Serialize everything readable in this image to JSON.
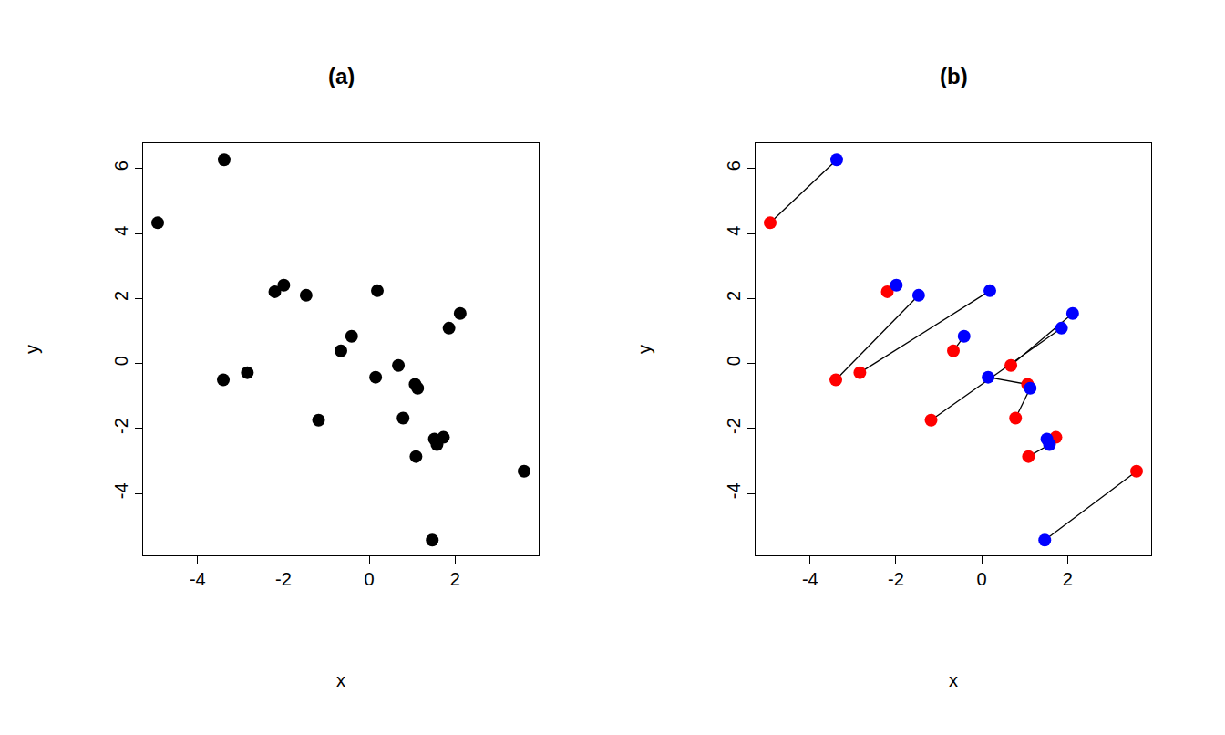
{
  "chart_data": [
    {
      "type": "scatter",
      "title": "(a)",
      "x_label": "x",
      "y_label": "y",
      "color": "black",
      "marker": "circle",
      "x": [
        -4.93,
        -3.38,
        -2.2,
        -1.99,
        -1.47,
        0.19,
        2.12,
        1.86,
        -0.41,
        -0.66,
        0.68,
        0.15,
        1.07,
        1.13,
        -3.4,
        -2.84,
        -1.18,
        0.79,
        1.52,
        1.73,
        1.58,
        1.09,
        3.61,
        1.47
      ],
      "y": [
        4.33,
        6.27,
        2.21,
        2.41,
        2.1,
        2.24,
        1.54,
        1.09,
        0.84,
        0.39,
        -0.06,
        -0.42,
        -0.64,
        -0.76,
        -0.5,
        -0.28,
        -1.74,
        -1.68,
        -2.32,
        -2.27,
        -2.49,
        -2.86,
        -3.31,
        -5.43
      ],
      "xlim": [
        -5.27,
        3.95
      ],
      "ylim": [
        -5.9,
        6.78
      ],
      "xticks": [
        -4,
        -2,
        0,
        2
      ],
      "yticks": [
        -4,
        -2,
        0,
        2,
        4,
        6
      ]
    },
    {
      "type": "scatter",
      "title": "(b)",
      "x_label": "x",
      "y_label": "y",
      "marker": "circle",
      "line_style": "solid",
      "series": [
        {
          "color": "red",
          "x": [
            -4.93,
            -2.2,
            -3.4,
            -2.84,
            -0.66,
            0.68,
            -1.18,
            1.07,
            0.79,
            1.73,
            1.09,
            3.61
          ],
          "y": [
            4.33,
            2.21,
            -0.5,
            -0.28,
            0.39,
            -0.06,
            -1.74,
            -0.64,
            -1.68,
            -2.27,
            -2.86,
            -3.31
          ]
        },
        {
          "color": "blue",
          "x": [
            -3.38,
            -1.99,
            -1.47,
            0.19,
            -0.41,
            2.12,
            1.86,
            0.15,
            1.13,
            1.52,
            1.58,
            1.47
          ],
          "y": [
            6.27,
            2.41,
            2.1,
            2.24,
            0.84,
            1.54,
            1.09,
            -0.42,
            -0.76,
            -2.32,
            -2.49,
            -5.43
          ]
        }
      ],
      "xlim": [
        -5.27,
        3.95
      ],
      "ylim": [
        -5.9,
        6.78
      ],
      "xticks": [
        -4,
        -2,
        0,
        2
      ],
      "yticks": [
        -4,
        -2,
        0,
        2,
        4,
        6
      ]
    }
  ]
}
